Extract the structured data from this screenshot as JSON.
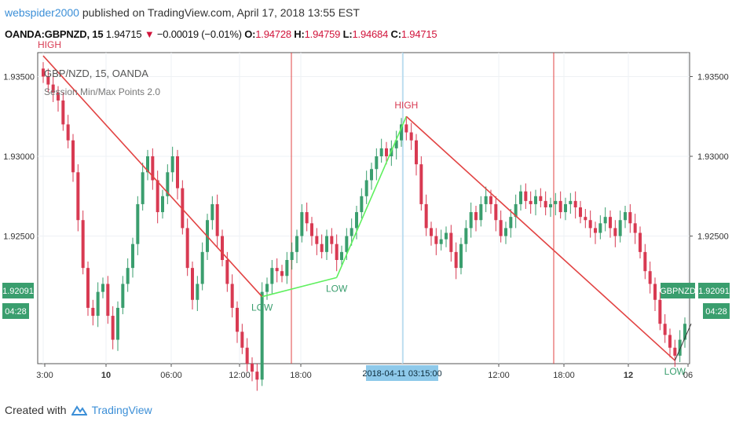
{
  "header": {
    "user": "webspider2000",
    "published_text": " published on TradingView.com, April 17, 2018 13:55 EST"
  },
  "symbol_line": {
    "symbol": "OANDA:GBPNZD, 15",
    "last": "1.94715",
    "change": "−0.00019 (−0.01%)",
    "o_label": "O:",
    "o": "1.94728",
    "h_label": "H:",
    "h": "1.94759",
    "l_label": "L:",
    "l": "1.94684",
    "c_label": "C:",
    "c": "1.94715"
  },
  "legend": {
    "title": "GBP/NZD, 15, OANDA",
    "indicator": "Session Min/Max Points 2.0"
  },
  "footer": {
    "created_with": "Created with",
    "brand": "TradingView"
  },
  "colors": {
    "up": "#3a9e6e",
    "down": "#d83a52",
    "red_line": "#e24343",
    "green_line": "#5ef05e",
    "cursor_line": "#8ec9ea",
    "badge": "#3a9e6e"
  },
  "chart_data": {
    "type": "candlestick",
    "ylim": [
      1.917,
      1.9365
    ],
    "y_ticks": [
      "1.93500",
      "1.93000",
      "1.92500"
    ],
    "y_tick_values": [
      1.935,
      1.93,
      1.925
    ],
    "x_tick_labels": [
      "3:00",
      "10",
      "06:00",
      "12:00",
      "18:00",
      "12:00",
      "18:00",
      "12",
      "06"
    ],
    "cursor_time_label": "2018-04-11 03:15:00",
    "price_badge": "1.92091",
    "time_badge": "04:28",
    "symbol_badge": "GBPNZD",
    "session_dividers": [
      "session-1",
      "session-2"
    ],
    "pivot_points": [
      {
        "label": "HIGH",
        "index": 0,
        "price": 1.9363,
        "type": "high"
      },
      {
        "label": "LOW",
        "index": 44,
        "price": 1.9212,
        "type": "low"
      },
      {
        "label": "LOW",
        "index": 59,
        "price": 1.9224,
        "type": "low"
      },
      {
        "label": "HIGH",
        "index": 73,
        "price": 1.9325,
        "type": "high"
      },
      {
        "label": "LOW",
        "index": 127,
        "price": 1.9172,
        "type": "low"
      }
    ],
    "close_series": [
      1.935,
      1.9345,
      1.934,
      1.9335,
      1.932,
      1.931,
      1.929,
      1.926,
      1.923,
      1.9205,
      1.92,
      1.9215,
      1.922,
      1.92,
      1.9185,
      1.9205,
      1.922,
      1.923,
      1.9245,
      1.927,
      1.929,
      1.93,
      1.9285,
      1.9265,
      1.9275,
      1.929,
      1.93,
      1.928,
      1.9255,
      1.923,
      1.921,
      1.922,
      1.924,
      1.926,
      1.927,
      1.925,
      1.9235,
      1.922,
      1.9205,
      1.919,
      1.918,
      1.917,
      1.9165,
      1.916,
      1.9215,
      1.922,
      1.923,
      1.9228,
      1.9225,
      1.9235,
      1.924,
      1.925,
      1.9265,
      1.9258,
      1.925,
      1.9245,
      1.924,
      1.925,
      1.9245,
      1.9235,
      1.924,
      1.925,
      1.9255,
      1.9265,
      1.9275,
      1.9285,
      1.9292,
      1.93,
      1.9305,
      1.93,
      1.9305,
      1.931,
      1.932,
      1.9315,
      1.931,
      1.9295,
      1.927,
      1.9255,
      1.925,
      1.9245,
      1.9248,
      1.9252,
      1.924,
      1.923,
      1.9245,
      1.9255,
      1.9265,
      1.926,
      1.927,
      1.9275,
      1.927,
      1.926,
      1.925,
      1.9255,
      1.9262,
      1.927,
      1.9278,
      1.9272,
      1.927,
      1.9275,
      1.9272,
      1.9268,
      1.927,
      1.9272,
      1.9265,
      1.927,
      1.9272,
      1.9268,
      1.9262,
      1.926,
      1.9255,
      1.9252,
      1.9258,
      1.9262,
      1.9255,
      1.925,
      1.926,
      1.9265,
      1.9258,
      1.9252,
      1.924,
      1.9228,
      1.922,
      1.921,
      1.9195,
      1.9188,
      1.918,
      1.9175,
      1.9185,
      1.9195
    ]
  }
}
